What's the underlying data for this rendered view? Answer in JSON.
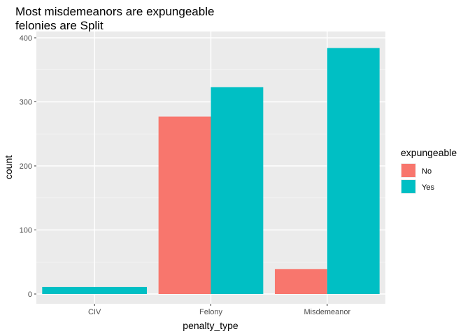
{
  "chart_data": {
    "type": "bar",
    "title": [
      "Most misdemeanors are expungeable",
      "felonies are Split"
    ],
    "xlabel": "penalty_type",
    "ylabel": "count",
    "categories": [
      "CIV",
      "Felony",
      "Misdemeanor"
    ],
    "series": [
      {
        "name": "No",
        "color": "#F8766D",
        "values": [
          0,
          277,
          39
        ]
      },
      {
        "name": "Yes",
        "color": "#00BFC4",
        "values": [
          11,
          323,
          384
        ]
      }
    ],
    "ylim": [
      0,
      400
    ],
    "yticks": [
      0,
      100,
      200,
      300,
      400
    ],
    "legend": {
      "title": "expungeable",
      "placement": "right"
    },
    "grid": true,
    "panel_background": "#EBEBEB"
  }
}
